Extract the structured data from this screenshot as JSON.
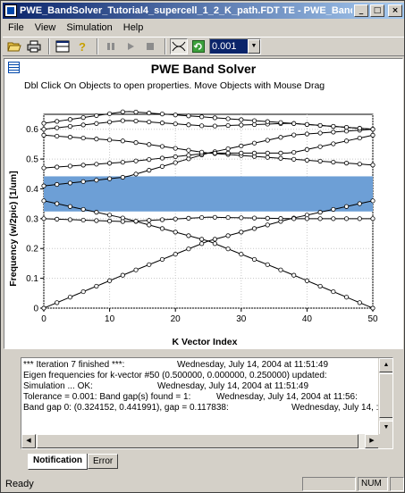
{
  "window": {
    "title": "PWE_BandSolver_Tutorial4_supercell_1_2_K_path.FDT TE - PWE_BandS..."
  },
  "menu": [
    "File",
    "View",
    "Simulation",
    "Help"
  ],
  "toolbar": {
    "timestep": "0.001"
  },
  "chart_hint": "Dbl Click On Objects to open properties.  Move Objects with Mouse Drag",
  "chart_data": {
    "type": "line",
    "title": "PWE Band Solver",
    "xlabel": "K Vector Index",
    "ylabel": "Frequency (w/2pic) [1/um]",
    "xlim": [
      0,
      50
    ],
    "ylim": [
      0,
      0.65
    ],
    "xticks": [
      0,
      10,
      20,
      30,
      40,
      50
    ],
    "yticks": [
      0,
      0.1,
      0.2,
      0.3,
      0.4,
      0.5,
      0.6
    ],
    "grid": true,
    "band_gap": {
      "low": 0.324152,
      "high": 0.441991,
      "color": "#6d9fd6"
    },
    "series": [
      {
        "color": "#000000",
        "values": [
          0.0,
          0.115,
          0.225,
          0.3,
          0.36
        ]
      },
      {
        "color": "#000000",
        "values": [
          0.36,
          0.3,
          0.225,
          0.115,
          0.0
        ]
      },
      {
        "color": "#000000",
        "values": [
          0.3,
          0.29,
          0.305,
          0.3,
          0.3
        ]
      },
      {
        "color": "#000000",
        "values": [
          0.41,
          0.44,
          0.52,
          0.5,
          0.48
        ]
      },
      {
        "color": "#000000",
        "values": [
          0.47,
          0.49,
          0.52,
          0.58,
          0.6
        ]
      },
      {
        "color": "#000000",
        "values": [
          0.58,
          0.56,
          0.52,
          0.52,
          0.58
        ]
      },
      {
        "color": "#000000",
        "values": [
          0.6,
          0.63,
          0.61,
          0.62,
          0.6
        ]
      },
      {
        "color": "#000000",
        "values": [
          0.62,
          0.66,
          0.64,
          0.62,
          0.6
        ]
      }
    ]
  },
  "log": [
    {
      "msg": "  *** Iteration    7 finished ***:",
      "ts": "Wednesday, July 14, 2004 at 11:51:49"
    },
    {
      "msg": "Eigen frequencies for k-vector #50 (0.500000, 0.000000, 0.250000) updated:",
      "ts": "W"
    },
    {
      "msg": "Simulation ... OK:",
      "ts": "Wednesday, July 14, 2004 at 11:51:49"
    },
    {
      "msg": "Tolerance = 0.001: Band gap(s) found = 1:",
      "ts": "Wednesday, July 14, 2004 at 11:56:"
    },
    {
      "msg": "      Band gap 0: (0.324152, 0.441991), gap = 0.117838:",
      "ts": "Wednesday, July 14, :"
    }
  ],
  "tabs": [
    "Notification",
    "Error"
  ],
  "status": {
    "text": "Ready",
    "num": "NUM"
  }
}
